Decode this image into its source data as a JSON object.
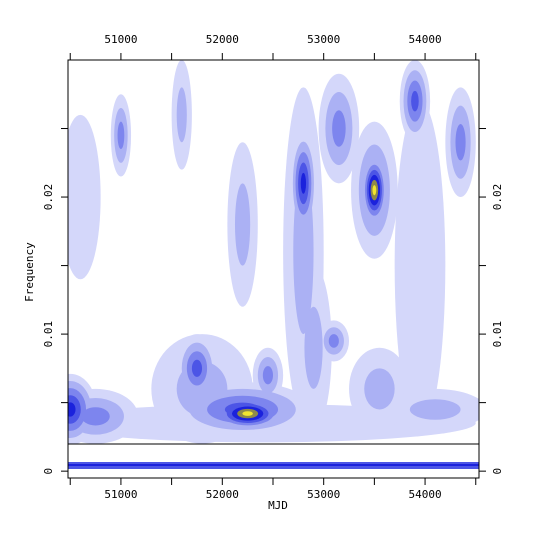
{
  "chart_data": {
    "type": "contour",
    "xlabel": "MJD",
    "ylabel": "Frequency",
    "xlim": [
      50478,
      54532
    ],
    "ylim": [
      -0.0005,
      0.03
    ],
    "xticks": [
      51000,
      52000,
      53000,
      54000
    ],
    "xminor": [
      50500,
      51500,
      52500,
      53500,
      54500
    ],
    "yticks": [
      0,
      0.01,
      0.02
    ],
    "yminor": [
      0.005,
      0.015,
      0.025
    ],
    "level_colors": [
      "#d4d7fa",
      "#abb1f4",
      "#7d85ee",
      "#4c55e6",
      "#1b22dc",
      "#8f8a4a",
      "#f2e530"
    ],
    "blobs": [
      {
        "x": 52400,
        "y": 0.0035,
        "sx": 2100,
        "sy": 0.0014,
        "level": 1
      },
      {
        "x": 50500,
        "y": 0.0045,
        "sx": 260,
        "sy": 0.0026,
        "level": 5
      },
      {
        "x": 50750,
        "y": 0.004,
        "sx": 420,
        "sy": 0.002,
        "level": 3
      },
      {
        "x": 52200,
        "y": 0.0045,
        "sx": 700,
        "sy": 0.002,
        "level": 4
      },
      {
        "x": 52250,
        "y": 0.0042,
        "sx": 360,
        "sy": 0.0012,
        "level": 7
      },
      {
        "x": 51750,
        "y": 0.0075,
        "sx": 200,
        "sy": 0.0025,
        "level": 4
      },
      {
        "x": 51800,
        "y": 0.006,
        "sx": 500,
        "sy": 0.004,
        "level": 2
      },
      {
        "x": 52450,
        "y": 0.007,
        "sx": 150,
        "sy": 0.002,
        "level": 3
      },
      {
        "x": 52800,
        "y": 0.016,
        "sx": 200,
        "sy": 0.012,
        "level": 2
      },
      {
        "x": 52800,
        "y": 0.021,
        "sx": 130,
        "sy": 0.0038,
        "level": 5
      },
      {
        "x": 52900,
        "y": 0.009,
        "sx": 180,
        "sy": 0.006,
        "level": 2
      },
      {
        "x": 53100,
        "y": 0.0095,
        "sx": 150,
        "sy": 0.0015,
        "level": 3
      },
      {
        "x": 53150,
        "y": 0.025,
        "sx": 200,
        "sy": 0.004,
        "level": 3
      },
      {
        "x": 53500,
        "y": 0.0205,
        "sx": 230,
        "sy": 0.005,
        "level": 3
      },
      {
        "x": 53500,
        "y": 0.0205,
        "sx": 130,
        "sy": 0.0026,
        "level": 7
      },
      {
        "x": 53550,
        "y": 0.006,
        "sx": 300,
        "sy": 0.003,
        "level": 2
      },
      {
        "x": 53950,
        "y": 0.015,
        "sx": 250,
        "sy": 0.012,
        "level": 1
      },
      {
        "x": 53900,
        "y": 0.027,
        "sx": 150,
        "sy": 0.003,
        "level": 4
      },
      {
        "x": 54350,
        "y": 0.024,
        "sx": 150,
        "sy": 0.004,
        "level": 3
      },
      {
        "x": 54100,
        "y": 0.0045,
        "sx": 500,
        "sy": 0.0015,
        "level": 2
      },
      {
        "x": 51000,
        "y": 0.0245,
        "sx": 100,
        "sy": 0.003,
        "level": 3
      },
      {
        "x": 50600,
        "y": 0.02,
        "sx": 200,
        "sy": 0.006,
        "level": 1
      },
      {
        "x": 52200,
        "y": 0.018,
        "sx": 150,
        "sy": 0.006,
        "level": 2
      },
      {
        "x": 51600,
        "y": 0.026,
        "sx": 100,
        "sy": 0.004,
        "level": 2
      }
    ]
  }
}
